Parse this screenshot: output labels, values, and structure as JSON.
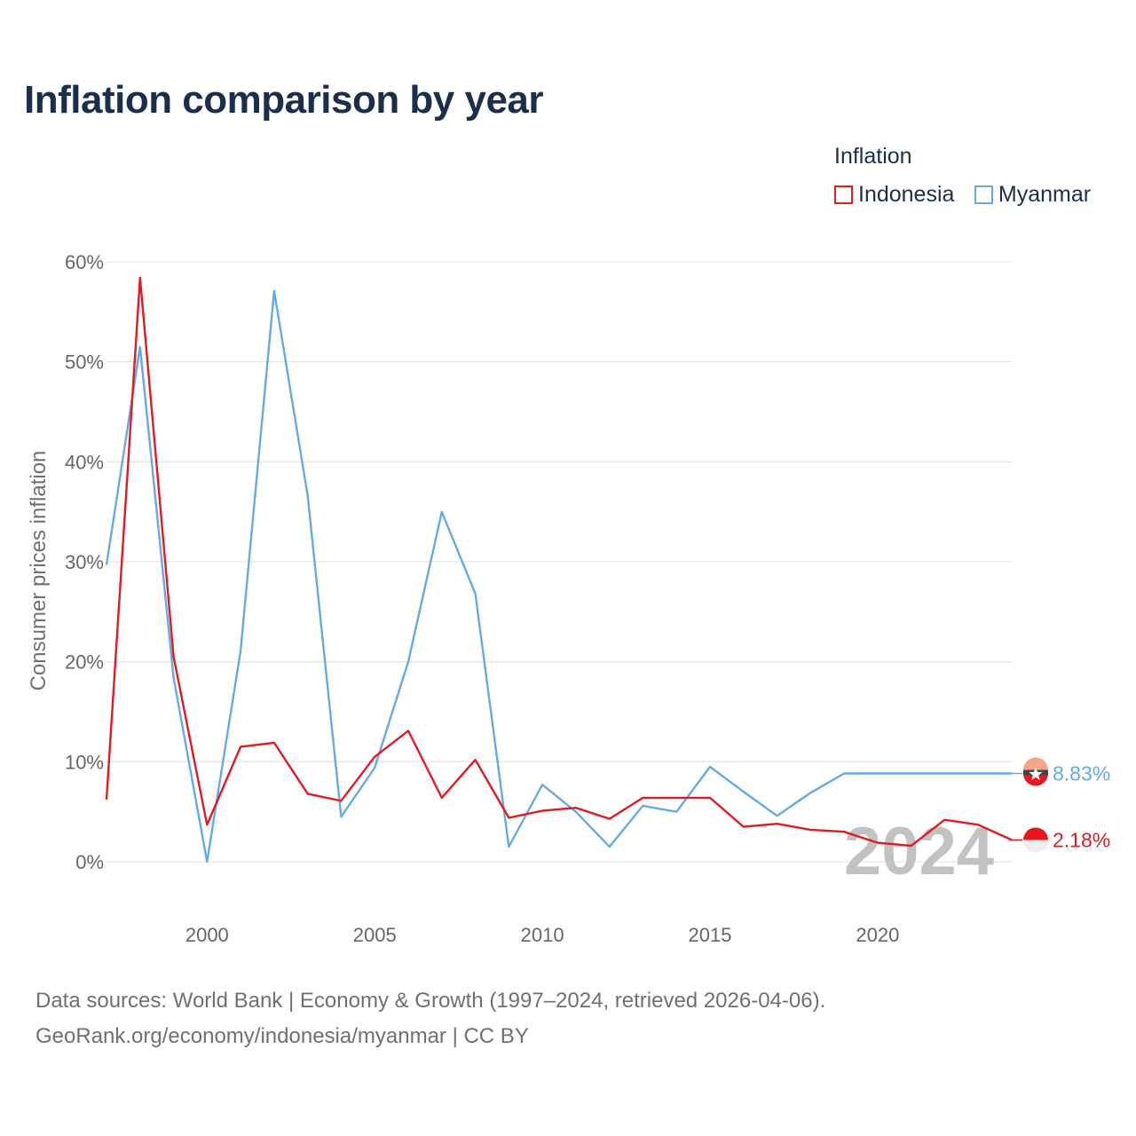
{
  "title": "Inflation comparison by year",
  "legend": {
    "title": "Inflation",
    "items": [
      {
        "name": "Indonesia",
        "color": "#e01b22"
      },
      {
        "name": "Myanmar",
        "color": "#66aae2"
      }
    ]
  },
  "chart_data": {
    "type": "line",
    "title": "Inflation comparison by year",
    "xlabel": "",
    "ylabel": "Consumer prices inflation",
    "xlim": [
      1997,
      2024
    ],
    "ylim": [
      0,
      60
    ],
    "y_ticks": [
      0,
      10,
      20,
      30,
      40,
      50,
      60
    ],
    "y_tick_labels": [
      "0%",
      "10%",
      "20%",
      "30%",
      "40%",
      "50%",
      "60%"
    ],
    "x_ticks": [
      2000,
      2005,
      2010,
      2015,
      2020
    ],
    "x_tick_labels": [
      "2000",
      "2005",
      "2010",
      "2015",
      "2020"
    ],
    "grid": true,
    "year_watermark": "2024",
    "x": [
      1997,
      1998,
      1999,
      2000,
      2001,
      2002,
      2003,
      2004,
      2005,
      2006,
      2007,
      2008,
      2009,
      2010,
      2011,
      2012,
      2013,
      2014,
      2015,
      2016,
      2017,
      2018,
      2019,
      2020,
      2021,
      2022,
      2023,
      2024
    ],
    "series": [
      {
        "name": "Indonesia",
        "color": "#e01b22",
        "end_label": "2.18%",
        "values": [
          6.2,
          58.4,
          20.5,
          3.7,
          11.5,
          11.9,
          6.8,
          6.1,
          10.5,
          13.1,
          6.4,
          10.2,
          4.4,
          5.1,
          5.4,
          4.3,
          6.4,
          6.4,
          6.4,
          3.5,
          3.8,
          3.2,
          3.0,
          1.9,
          1.6,
          4.2,
          3.7,
          2.18
        ]
      },
      {
        "name": "Myanmar",
        "color": "#66aae2",
        "end_label": "8.83%",
        "values": [
          29.7,
          51.5,
          18.4,
          0.0,
          21.1,
          57.1,
          36.6,
          4.5,
          9.4,
          20.0,
          35.0,
          26.8,
          1.5,
          7.7,
          5.0,
          1.5,
          5.6,
          5.0,
          9.5,
          7.0,
          4.6,
          6.9,
          8.83,
          8.83,
          8.83,
          8.83,
          8.83,
          8.83
        ]
      }
    ]
  },
  "sources": {
    "line1": "Data sources: World Bank | Economy & Growth (1997–2024, retrieved 2026-04-06).",
    "line2": "GeoRank.org/economy/indonesia/myanmar | CC BY"
  }
}
